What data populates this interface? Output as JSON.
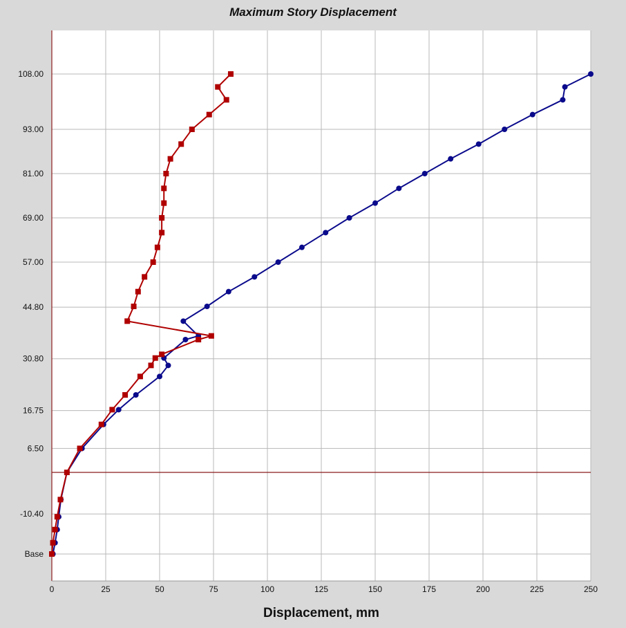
{
  "chart_data": {
    "type": "line",
    "title": "Maximum Story Displacement",
    "xlabel": "Displacement, mm",
    "ylabel": "",
    "xlim": [
      0,
      250
    ],
    "x_ticks": [
      0,
      25,
      50,
      75,
      100,
      125,
      150,
      175,
      200,
      225,
      250
    ],
    "y_ticks": [
      {
        "label": "Base",
        "value": -20.4
      },
      {
        "label": "-10.40",
        "value": -10.4
      },
      {
        "label": "6.50",
        "value": 6.5
      },
      {
        "label": "16.75",
        "value": 16.75
      },
      {
        "label": "30.80",
        "value": 30.8
      },
      {
        "label": "44.80",
        "value": 44.8
      },
      {
        "label": "57.00",
        "value": 57.0
      },
      {
        "label": "69.00",
        "value": 69.0
      },
      {
        "label": "81.00",
        "value": 81.0
      },
      {
        "label": "93.00",
        "value": 93.0
      },
      {
        "label": "108.00",
        "value": 108.0
      }
    ],
    "reference_line_y": 0.0,
    "grid": true,
    "legend": "none",
    "colors": {
      "series_blue": "#0a0a8c",
      "series_red": "#b00000",
      "axis": "#8b1a1a",
      "grid": "#b8b8b8"
    },
    "series": [
      {
        "marker": "circle",
        "color": "#0a0a8c",
        "points": [
          [
            0.5,
            -20.4
          ],
          [
            1.5,
            -17.6
          ],
          [
            2.5,
            -14.3
          ],
          [
            3.2,
            -11.1
          ],
          [
            4.2,
            -6.8
          ],
          [
            7.0,
            0.0
          ],
          [
            14.0,
            6.5
          ],
          [
            24.0,
            13.0
          ],
          [
            31.0,
            17.0
          ],
          [
            39.0,
            21.0
          ],
          [
            50.0,
            26.0
          ],
          [
            54.0,
            29.0
          ],
          [
            52.0,
            31.0
          ],
          [
            62.0,
            36.0
          ],
          [
            68.0,
            37.0
          ],
          [
            61.0,
            41.0
          ],
          [
            72.0,
            45.0
          ],
          [
            82.0,
            49.0
          ],
          [
            94.0,
            53.0
          ],
          [
            105.0,
            57.0
          ],
          [
            116.0,
            61.0
          ],
          [
            127.0,
            65.0
          ],
          [
            138.0,
            69.0
          ],
          [
            150.0,
            73.0
          ],
          [
            161.0,
            77.0
          ],
          [
            173.0,
            81.0
          ],
          [
            185.0,
            85.0
          ],
          [
            198.0,
            89.0
          ],
          [
            210.0,
            93.0
          ],
          [
            223.0,
            97.0
          ],
          [
            237.0,
            101.0
          ],
          [
            238.0,
            104.5
          ],
          [
            250.0,
            108.0
          ]
        ]
      },
      {
        "marker": "square",
        "color": "#b00000",
        "points": [
          [
            0.0,
            -20.4
          ],
          [
            0.5,
            -17.6
          ],
          [
            1.5,
            -14.3
          ],
          [
            2.5,
            -11.1
          ],
          [
            4.0,
            -6.8
          ],
          [
            7.0,
            0.0
          ],
          [
            13.0,
            6.5
          ],
          [
            23.0,
            13.0
          ],
          [
            28.0,
            17.0
          ],
          [
            34.0,
            21.0
          ],
          [
            41.0,
            26.0
          ],
          [
            46.0,
            29.0
          ],
          [
            48.0,
            31.0
          ],
          [
            51.0,
            32.0
          ],
          [
            68.0,
            36.0
          ],
          [
            74.0,
            37.0
          ],
          [
            35.0,
            41.0
          ],
          [
            38.0,
            45.0
          ],
          [
            40.0,
            49.0
          ],
          [
            43.0,
            53.0
          ],
          [
            47.0,
            57.0
          ],
          [
            49.0,
            61.0
          ],
          [
            51.0,
            65.0
          ],
          [
            51.0,
            69.0
          ],
          [
            52.0,
            73.0
          ],
          [
            52.0,
            77.0
          ],
          [
            53.0,
            81.0
          ],
          [
            55.0,
            85.0
          ],
          [
            60.0,
            89.0
          ],
          [
            65.0,
            93.0
          ],
          [
            73.0,
            97.0
          ],
          [
            81.0,
            101.0
          ],
          [
            77.0,
            104.5
          ],
          [
            83.0,
            108.0
          ]
        ]
      }
    ]
  }
}
